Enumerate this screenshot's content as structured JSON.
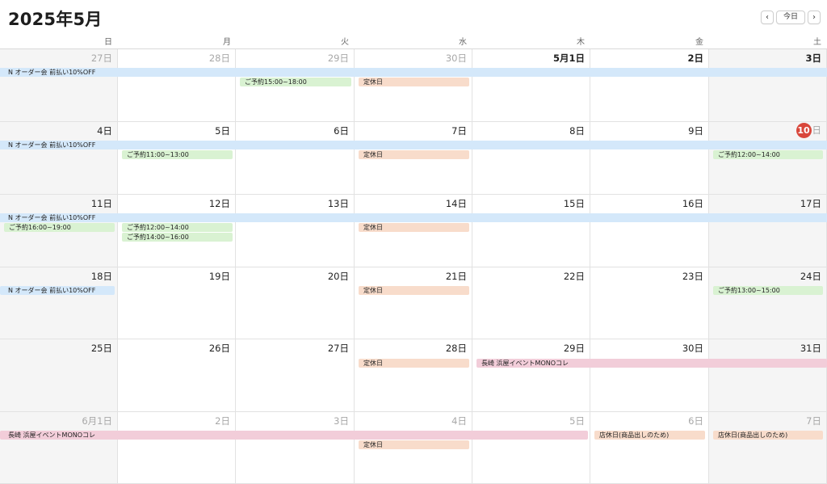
{
  "header": {
    "title": "2025年5月",
    "prev_label": "‹",
    "today_label": "今日",
    "next_label": "›"
  },
  "weekdays": [
    "日",
    "月",
    "火",
    "水",
    "木",
    "金",
    "土"
  ],
  "weeks": [
    [
      "27日",
      "28日",
      "29日",
      "30日",
      "5月1日",
      "2日",
      "3日"
    ],
    [
      "4日",
      "5日",
      "6日",
      "7日",
      "8日",
      "9日",
      "10"
    ],
    [
      "11日",
      "12日",
      "13日",
      "14日",
      "15日",
      "16日",
      "17日"
    ],
    [
      "18日",
      "19日",
      "20日",
      "21日",
      "22日",
      "23日",
      "24日"
    ],
    [
      "25日",
      "26日",
      "27日",
      "28日",
      "29日",
      "30日",
      "31日"
    ],
    [
      "6月1日",
      "2日",
      "3日",
      "4日",
      "5日",
      "6日",
      "7日"
    ]
  ],
  "today_suffix": "日",
  "events": {
    "order_sale": "N オーダー会 前払い10%OFF",
    "reserve_1500": "ご予約15:00~18:00",
    "closed": "定休日",
    "reserve_1100": "ご予約11:00~13:00",
    "reserve_1200": "ご予約12:00~14:00",
    "reserve_1600": "ご予約16:00~19:00",
    "reserve_1400": "ご予約14:00~16:00",
    "reserve_1300": "ご予約13:00~15:00",
    "nagasaki_event": "長崎 浜屋イベントMONOコレ",
    "store_closed": "店休日(商品出しのため)"
  },
  "colors": {
    "order_sale": "#d4e8fa",
    "reservation": "#d9f2d2",
    "closed": "#f8dccb",
    "event": "#f2cdd9",
    "today_badge": "#d9473b"
  }
}
